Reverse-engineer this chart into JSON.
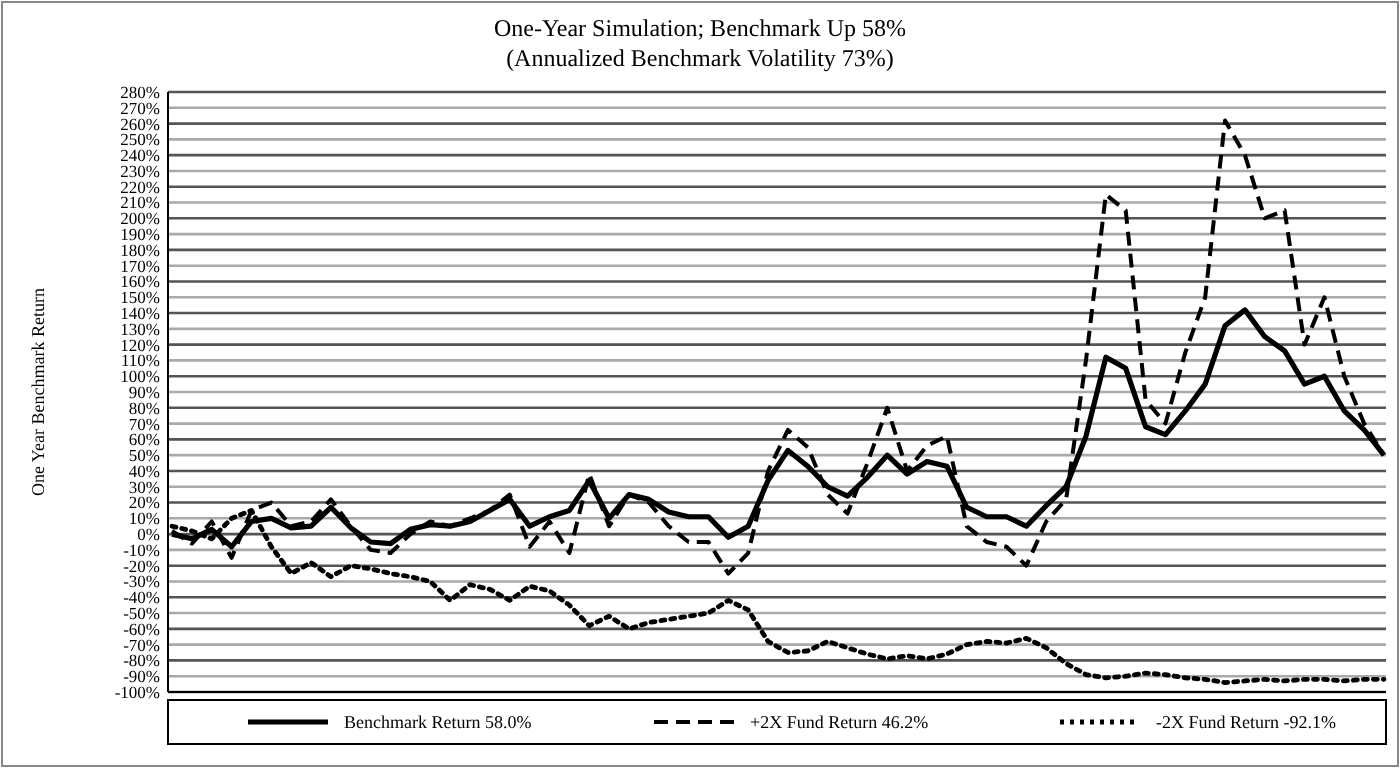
{
  "chart_data": {
    "type": "line",
    "title": "One-Year Simulation; Benchmark Up 58%",
    "subtitle": "(Annualized Benchmark Volatility 73%)",
    "ylabel": "One Year Benchmark Return",
    "categories": [
      null,
      null,
      null,
      null,
      null,
      null,
      null,
      null,
      null,
      null,
      null,
      null,
      null,
      null,
      null,
      null,
      null,
      null,
      null,
      null,
      null,
      null,
      null,
      null,
      null,
      null,
      null,
      null,
      null,
      null,
      null,
      null,
      null,
      null,
      null,
      null,
      null,
      null,
      null,
      null,
      null,
      null,
      null,
      null,
      null,
      null,
      null,
      null,
      null,
      null,
      null,
      null,
      null,
      null,
      null,
      null,
      null,
      null,
      null,
      null,
      null,
      null
    ],
    "series": [
      {
        "name": "Benchmark Return 58.0%",
        "color": "#000000",
        "line_style": "solid",
        "values": [
          0,
          -3,
          3,
          -8,
          8,
          10,
          4,
          5,
          17,
          4,
          -5,
          -6,
          3,
          6,
          5,
          8,
          15,
          22,
          5,
          11,
          15,
          34,
          10,
          25,
          22,
          14,
          11,
          11,
          -2,
          5,
          34,
          53,
          43,
          30,
          24,
          36,
          50,
          38,
          46,
          43,
          17,
          11,
          11,
          5,
          18,
          30,
          62,
          112,
          105,
          68,
          63,
          78,
          95,
          132,
          142,
          125,
          116,
          95,
          100,
          78,
          66,
          50
        ]
      },
      {
        "name": "+2X Fund Return 46.2%",
        "color": "#000000",
        "line_style": "dashed",
        "values": [
          2,
          -6,
          8,
          -15,
          15,
          20,
          5,
          8,
          22,
          5,
          -10,
          -12,
          0,
          8,
          5,
          10,
          15,
          25,
          -8,
          8,
          -12,
          38,
          5,
          25,
          20,
          5,
          -5,
          -5,
          -25,
          -12,
          40,
          66,
          55,
          25,
          13,
          45,
          80,
          40,
          56,
          62,
          5,
          -5,
          -8,
          -20,
          8,
          22,
          110,
          215,
          205,
          85,
          70,
          115,
          150,
          262,
          240,
          200,
          205,
          120,
          150,
          100,
          70,
          50
        ]
      },
      {
        "name": "-2X Fund Return -92.1%",
        "color": "#000000",
        "line_style": "dotted",
        "values": [
          5,
          2,
          -3,
          10,
          15,
          -8,
          -25,
          -18,
          -27,
          -20,
          -22,
          -25,
          -27,
          -30,
          -42,
          -32,
          -35,
          -42,
          -33,
          -36,
          -45,
          -58,
          -52,
          -60,
          -56,
          -54,
          -52,
          -50,
          -42,
          -48,
          -68,
          -75,
          -74,
          -68,
          -72,
          -76,
          -79,
          -77,
          -79,
          -76,
          -70,
          -68,
          -69,
          -66,
          -72,
          -82,
          -89,
          -91,
          -90,
          -88,
          -89,
          -91,
          -92,
          -94,
          -93,
          -92,
          -93,
          -92,
          -92,
          -93,
          -92,
          -92
        ]
      }
    ],
    "ylim": [
      -100,
      280
    ],
    "yticks": [
      {
        "value": -100,
        "label": "-100%"
      },
      {
        "value": -90,
        "label": "-90%"
      },
      {
        "value": -80,
        "label": "-80%"
      },
      {
        "value": -70,
        "label": "-70%"
      },
      {
        "value": -60,
        "label": "-60%"
      },
      {
        "value": -50,
        "label": "-50%"
      },
      {
        "value": -40,
        "label": "-40%"
      },
      {
        "value": -30,
        "label": "-30%"
      },
      {
        "value": -20,
        "label": "-20%"
      },
      {
        "value": -10,
        "label": "-10%"
      },
      {
        "value": 0,
        "label": "0%"
      },
      {
        "value": 10,
        "label": "10%"
      },
      {
        "value": 20,
        "label": "20%"
      },
      {
        "value": 30,
        "label": "30%"
      },
      {
        "value": 40,
        "label": "40%"
      },
      {
        "value": 50,
        "label": "50%"
      },
      {
        "value": 60,
        "label": "60%"
      },
      {
        "value": 70,
        "label": "70%"
      },
      {
        "value": 80,
        "label": "80%"
      },
      {
        "value": 90,
        "label": "90%"
      },
      {
        "value": 100,
        "label": "100%"
      },
      {
        "value": 110,
        "label": "110%"
      },
      {
        "value": 120,
        "label": "120%"
      },
      {
        "value": 130,
        "label": "130%"
      },
      {
        "value": 140,
        "label": "140%"
      },
      {
        "value": 150,
        "label": "150%"
      },
      {
        "value": 160,
        "label": "160%"
      },
      {
        "value": 170,
        "label": "170%"
      },
      {
        "value": 180,
        "label": "180%"
      },
      {
        "value": 190,
        "label": "190%"
      },
      {
        "value": 200,
        "label": "200%"
      },
      {
        "value": 210,
        "label": "210%"
      },
      {
        "value": 220,
        "label": "220%"
      },
      {
        "value": 230,
        "label": "230%"
      },
      {
        "value": 240,
        "label": "240%"
      },
      {
        "value": 250,
        "label": "250%"
      },
      {
        "value": 260,
        "label": "260%"
      },
      {
        "value": 270,
        "label": "270%"
      },
      {
        "value": 280,
        "label": "280%"
      }
    ],
    "grid": "y",
    "legend": "bottom",
    "tick_labels": "y"
  }
}
